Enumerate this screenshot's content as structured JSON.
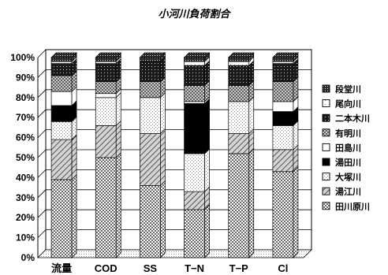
{
  "chart_data": {
    "type": "bar",
    "stacked": true,
    "percent": true,
    "title": "小河川負荷割合",
    "categories": [
      "流量",
      "COD",
      "SS",
      "T−N",
      "T−P",
      "Cl"
    ],
    "ylim": [
      0,
      100
    ],
    "yticks": [
      "0%",
      "10%",
      "20%",
      "30%",
      "40%",
      "50%",
      "60%",
      "70%",
      "80%",
      "90%",
      "100%"
    ],
    "legend_position": "right",
    "series": [
      {
        "name": "田川原川",
        "pattern": "cross-hatch-dense",
        "values": [
          39,
          50,
          36,
          24,
          52,
          43
        ]
      },
      {
        "name": "湯江川",
        "pattern": "diagonal-hatch",
        "values": [
          20,
          16,
          26,
          9,
          10,
          11
        ]
      },
      {
        "name": "大塚川",
        "pattern": "light-dots",
        "values": [
          9,
          14,
          18,
          19,
          16,
          12
        ]
      },
      {
        "name": "湯田川",
        "pattern": "solid-black",
        "values": [
          8,
          0,
          0,
          25,
          0,
          7
        ]
      },
      {
        "name": "田島川",
        "pattern": "white",
        "values": [
          7,
          2,
          0,
          1,
          0,
          5
        ]
      },
      {
        "name": "有明川",
        "pattern": "cross-hatch",
        "values": [
          8,
          6,
          8,
          8,
          8,
          10
        ]
      },
      {
        "name": "二本木川",
        "pattern": "dark-hatch",
        "values": [
          6,
          9,
          10,
          10,
          10,
          9
        ]
      },
      {
        "name": "尾向川",
        "pattern": "sparse-dots",
        "values": [
          1,
          1,
          0,
          2,
          2,
          1
        ]
      },
      {
        "name": "段堂川",
        "pattern": "dark-grid",
        "values": [
          2,
          2,
          2,
          2,
          2,
          2
        ]
      }
    ]
  }
}
